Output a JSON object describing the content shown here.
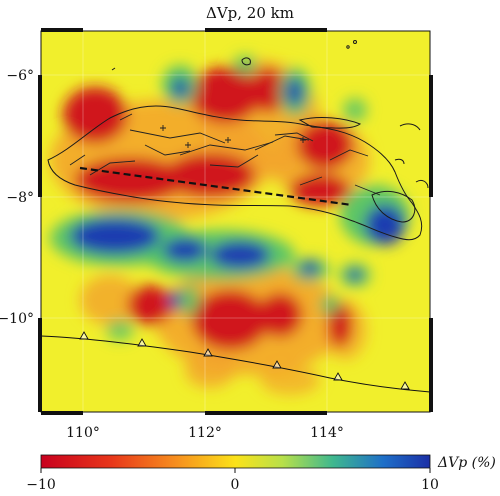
{
  "title": "ΔVp, 20 km",
  "axes": {
    "y_ticks": [
      "−6°",
      "−8°",
      "−10°"
    ],
    "x_ticks": [
      "110°",
      "112°",
      "114°"
    ]
  },
  "colorbar": {
    "label": "ΔVp (%)",
    "ticks": [
      "−10",
      "0",
      "10"
    ],
    "min": -10,
    "max": 10,
    "colors": [
      "#c8001e",
      "#e8361a",
      "#f7901e",
      "#fbe21a",
      "#f2ef2a",
      "#5cc46a",
      "#1e6fc8",
      "#1b2fa6"
    ]
  },
  "map": {
    "lon_range": [
      109.3,
      115.6
    ],
    "lat_range": [
      -11.75,
      -5.25
    ],
    "trench_markers": "triangles",
    "background_anomaly_color": "#f1ef2c"
  }
}
